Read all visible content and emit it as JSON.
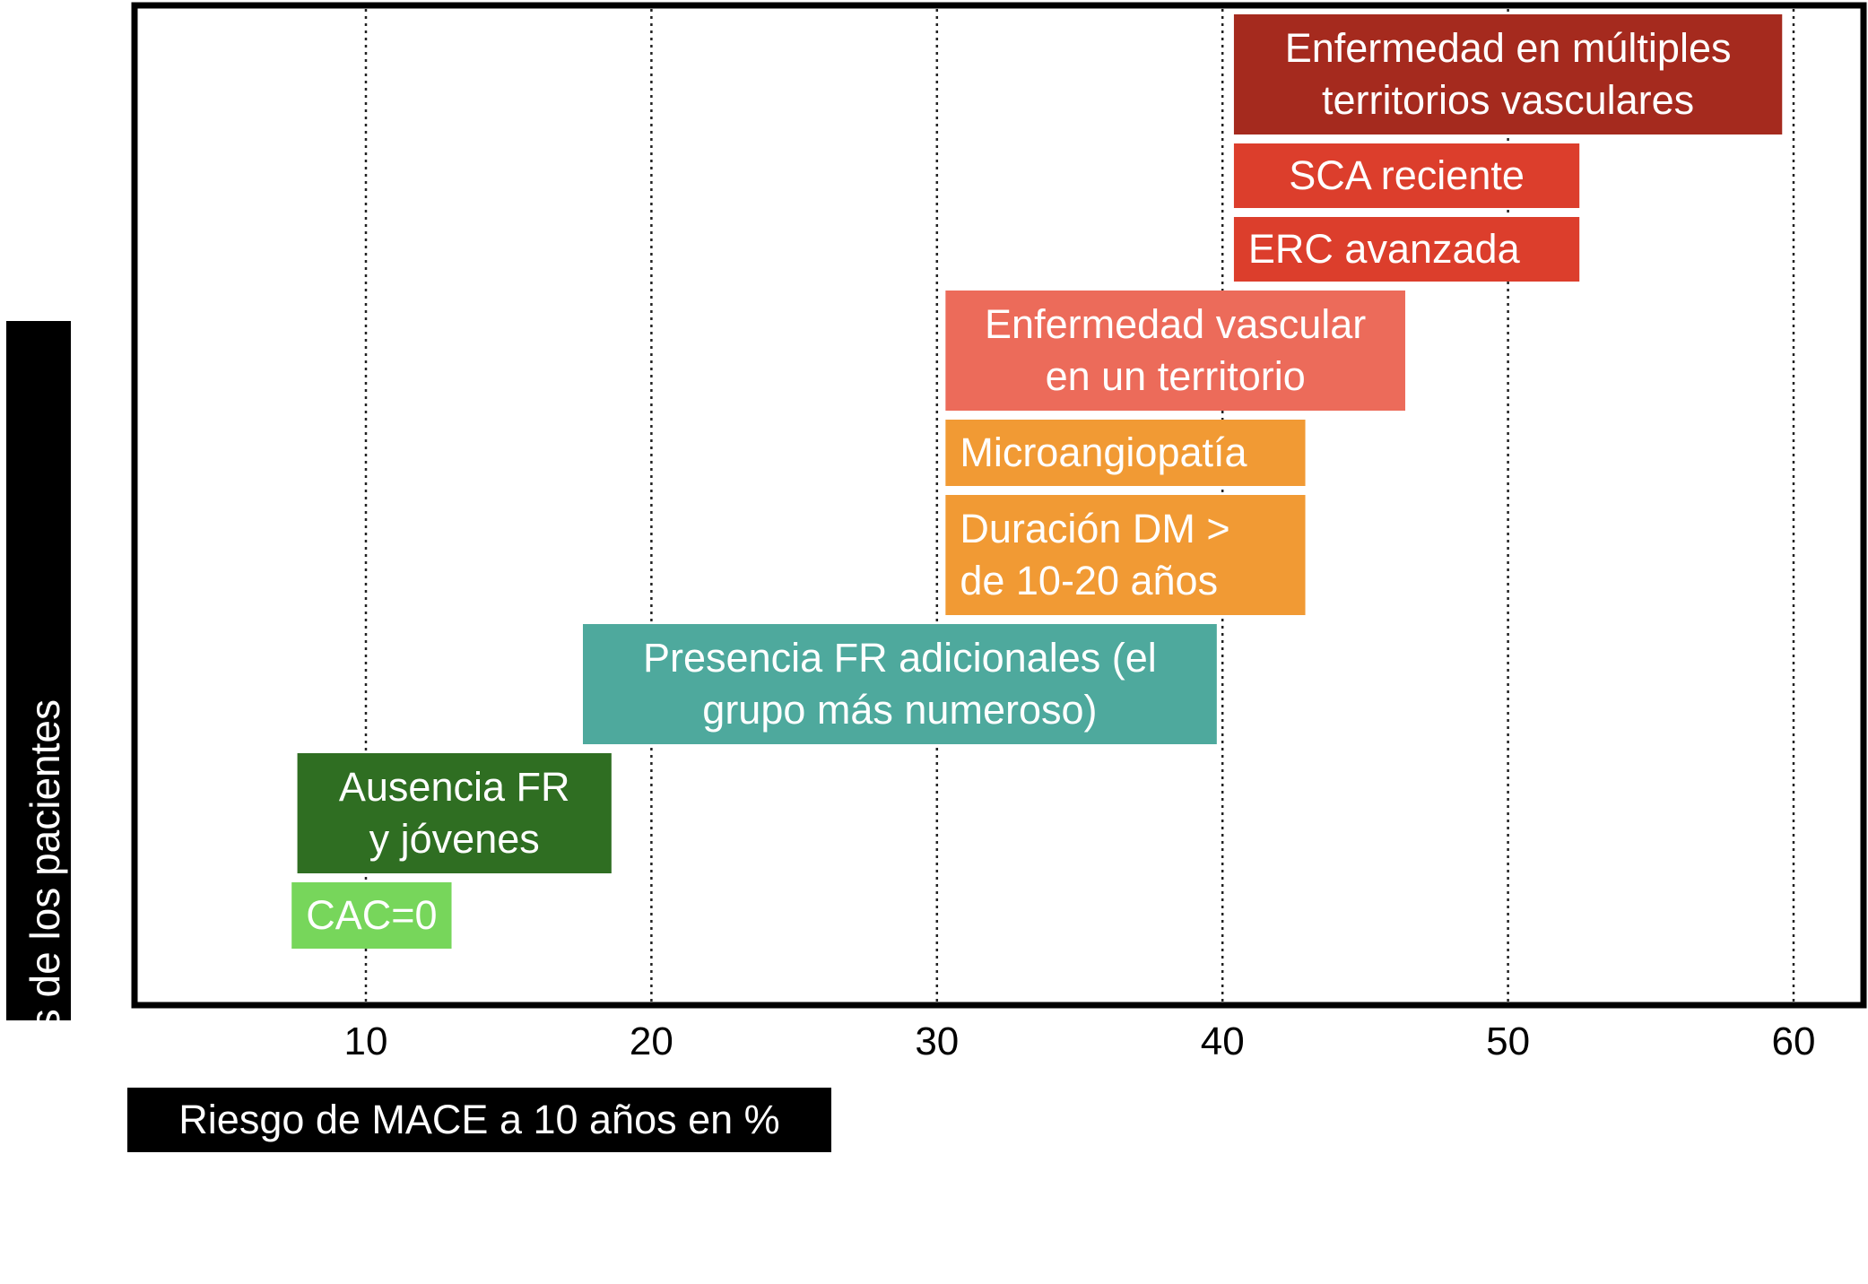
{
  "chart_data": {
    "type": "bar",
    "subtype": "floating-horizontal-range",
    "title": "",
    "xlabel": "Riesgo de MACE a 10 años en %",
    "ylabel": "Características de los pacientes",
    "xlim": [
      2,
      65
    ],
    "xticks": [
      10,
      20,
      30,
      40,
      50,
      60
    ],
    "grid": "vertical-dotted",
    "bars": [
      {
        "label": "Enfermedad en múltiples territorios vasculares",
        "lines": [
          "Enfermedad en múltiples",
          "territorios vasculares"
        ],
        "start": 40.4,
        "end": 59.6,
        "color": "#a52a1e",
        "align": "center"
      },
      {
        "label": "SCA reciente",
        "lines": [
          "SCA reciente"
        ],
        "start": 40.4,
        "end": 52.5,
        "color": "#dc3e2c",
        "align": "center"
      },
      {
        "label": "ERC avanzada",
        "lines": [
          "ERC avanzada"
        ],
        "start": 40.4,
        "end": 52.5,
        "color": "#dc3e2c",
        "align": "left"
      },
      {
        "label": "Enfermedad vascular en un territorio",
        "lines": [
          "Enfermedad vascular",
          "en un territorio"
        ],
        "start": 30.3,
        "end": 46.4,
        "color": "#ec6b5a",
        "align": "center"
      },
      {
        "label": "Microangiopatía",
        "lines": [
          "Microangiopatía"
        ],
        "start": 30.3,
        "end": 42.9,
        "color": "#f19a34",
        "align": "left"
      },
      {
        "label": "Duración DM > de 10-20 años",
        "lines": [
          "Duración DM >",
          "de 10-20 años"
        ],
        "start": 30.3,
        "end": 42.9,
        "color": "#f19a34",
        "align": "left"
      },
      {
        "label": "Presencia FR adicionales (el grupo más numeroso)",
        "lines": [
          "Presencia FR adicionales (el",
          "grupo más numeroso)"
        ],
        "start": 17.6,
        "end": 39.8,
        "color": "#4ea99d",
        "align": "center"
      },
      {
        "label": "Ausencia FR y jóvenes",
        "lines": [
          "Ausencia FR",
          "y jóvenes"
        ],
        "start": 7.6,
        "end": 18.6,
        "color": "#2f6e22",
        "align": "center"
      },
      {
        "label": "CAC=0",
        "lines": [
          "CAC=0"
        ],
        "start": 7.4,
        "end": 13.0,
        "color": "#77d65b",
        "align": "left"
      }
    ]
  }
}
